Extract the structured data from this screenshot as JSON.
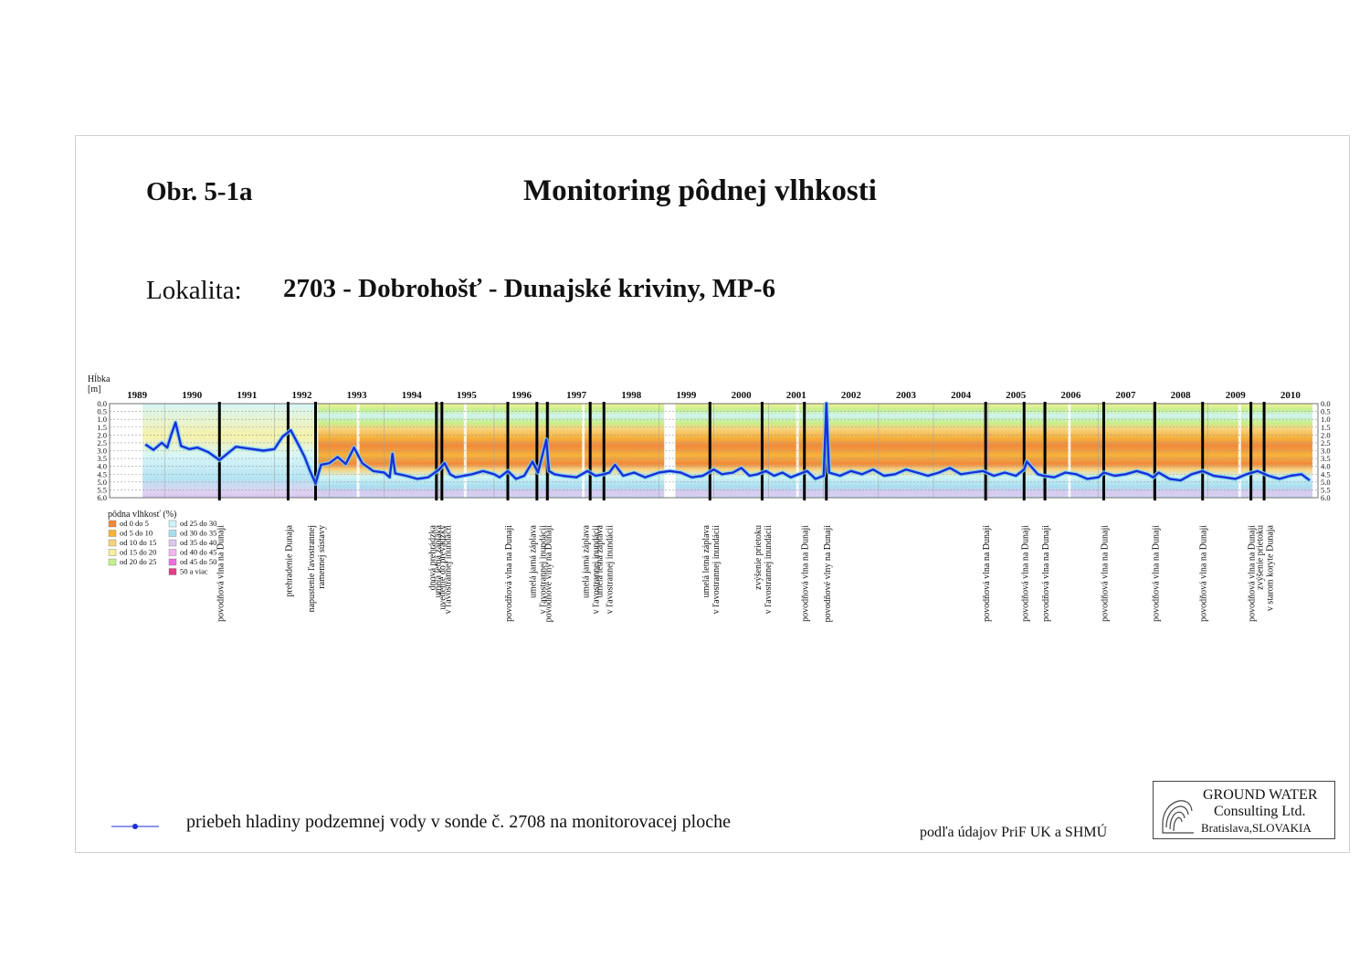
{
  "header": {
    "figure_label": "Obr. 5-1a",
    "title": "Monitoring pôdnej vlhkosti",
    "location_label": "Lokalita:",
    "location_value": "2703 - Dobrohošť - Dunajské kriviny, MP-6"
  },
  "chart_data": {
    "type": "heatmap",
    "ylabel_lines": [
      "Hĺbka",
      "[m]"
    ],
    "ylim": [
      0,
      6
    ],
    "y_ticks": [
      "0.0",
      "0.5",
      "1.0",
      "1.5",
      "2.0",
      "2.5",
      "3.0",
      "3.5",
      "4.0",
      "4.5",
      "5.0",
      "5.5",
      "6.0"
    ],
    "years": [
      "1989",
      "1990",
      "1991",
      "1992",
      "1993",
      "1994",
      "1995",
      "1996",
      "1997",
      "1998",
      "1999",
      "2000",
      "2001",
      "2002",
      "2003",
      "2004",
      "2005",
      "2006",
      "2007",
      "2008",
      "2009",
      "2010"
    ],
    "x_range": [
      1989.0,
      2011.0
    ],
    "legend": {
      "title": "pôdna vlhkosť (%)",
      "items": [
        {
          "label": "od 0 do 5",
          "color": "#f08a3c"
        },
        {
          "label": "od 5 do 10",
          "color": "#f5b33c"
        },
        {
          "label": "od 10 do 15",
          "color": "#f7d27e"
        },
        {
          "label": "od 15 do 20",
          "color": "#f5ef9c"
        },
        {
          "label": "od 20 do 25",
          "color": "#c6f08c"
        },
        {
          "label": "od 25 do 30",
          "color": "#cff4f5"
        },
        {
          "label": "od 30 do 35",
          "color": "#a9def0"
        },
        {
          "label": "od 35 do 40",
          "color": "#dcc8ee"
        },
        {
          "label": "od 40 do 45",
          "color": "#f3b6f0"
        },
        {
          "label": "od 45 do 50",
          "color": "#ee6fe0"
        },
        {
          "label": "50 a viac",
          "color": "#e43c86"
        }
      ]
    },
    "measurement_gaps": [
      [
        1989.0,
        1989.6
      ],
      [
        1999.1,
        1999.3
      ]
    ],
    "series": [
      {
        "name": "priebeh hladiny podzemnej vody v sonde č. 2708 na monitorovacej ploche",
        "color": "#1a2fd8",
        "x": [
          1989.65,
          1989.8,
          1989.95,
          1990.05,
          1990.12,
          1990.2,
          1990.3,
          1990.45,
          1990.6,
          1990.8,
          1991.0,
          1991.3,
          1991.5,
          1991.8,
          1992.0,
          1992.15,
          1992.3,
          1992.45,
          1992.55,
          1992.65,
          1992.75,
          1992.85,
          1993.0,
          1993.15,
          1993.3,
          1993.45,
          1993.6,
          1993.8,
          1994.0,
          1994.1,
          1994.15,
          1994.2,
          1994.4,
          1994.6,
          1994.8,
          1995.0,
          1995.1,
          1995.2,
          1995.3,
          1995.45,
          1995.6,
          1995.8,
          1996.0,
          1996.1,
          1996.25,
          1996.4,
          1996.55,
          1996.7,
          1996.8,
          1996.95,
          1997.0,
          1997.1,
          1997.25,
          1997.5,
          1997.7,
          1997.85,
          1998.0,
          1998.1,
          1998.2,
          1998.35,
          1998.55,
          1998.75,
          1999.0,
          1999.2,
          1999.4,
          1999.6,
          1999.8,
          2000.0,
          2000.15,
          2000.35,
          2000.5,
          2000.65,
          2000.8,
          2000.95,
          2001.1,
          2001.25,
          2001.4,
          2001.55,
          2001.7,
          2001.85,
          2002.0,
          2002.05,
          2002.1,
          2002.3,
          2002.5,
          2002.7,
          2002.9,
          2003.1,
          2003.3,
          2003.5,
          2003.7,
          2003.9,
          2004.1,
          2004.3,
          2004.5,
          2004.7,
          2004.9,
          2005.1,
          2005.3,
          2005.5,
          2005.65,
          2005.7,
          2005.9,
          2006.0,
          2006.2,
          2006.4,
          2006.6,
          2006.8,
          2007.0,
          2007.1,
          2007.3,
          2007.5,
          2007.7,
          2007.9,
          2008.0,
          2008.1,
          2008.3,
          2008.5,
          2008.7,
          2008.9,
          2009.1,
          2009.3,
          2009.5,
          2009.7,
          2009.9,
          2010.1,
          2010.3,
          2010.5,
          2010.7,
          2010.85
        ],
        "y": [
          2.6,
          2.95,
          2.5,
          2.8,
          2.0,
          1.2,
          2.7,
          2.9,
          2.8,
          3.1,
          3.6,
          2.75,
          2.85,
          3.0,
          2.9,
          2.1,
          1.7,
          2.7,
          3.4,
          4.3,
          5.1,
          3.9,
          3.8,
          3.4,
          3.85,
          2.8,
          3.8,
          4.3,
          4.4,
          4.7,
          3.2,
          4.45,
          4.6,
          4.8,
          4.7,
          4.2,
          3.8,
          4.5,
          4.7,
          4.6,
          4.5,
          4.3,
          4.5,
          4.7,
          4.3,
          4.8,
          4.6,
          3.7,
          4.4,
          2.3,
          4.3,
          4.5,
          4.6,
          4.7,
          4.3,
          4.6,
          4.5,
          4.4,
          3.9,
          4.6,
          4.4,
          4.7,
          4.4,
          4.3,
          4.4,
          4.7,
          4.6,
          4.2,
          4.5,
          4.4,
          4.1,
          4.6,
          4.5,
          4.3,
          4.6,
          4.4,
          4.7,
          4.5,
          4.3,
          4.8,
          4.6,
          0.0,
          4.4,
          4.6,
          4.3,
          4.5,
          4.2,
          4.6,
          4.5,
          4.2,
          4.4,
          4.6,
          4.4,
          4.1,
          4.5,
          4.4,
          4.3,
          4.6,
          4.4,
          4.6,
          4.2,
          3.7,
          4.5,
          4.6,
          4.7,
          4.4,
          4.5,
          4.8,
          4.7,
          4.4,
          4.6,
          4.5,
          4.3,
          4.5,
          4.7,
          4.4,
          4.8,
          4.9,
          4.5,
          4.3,
          4.6,
          4.7,
          4.8,
          4.5,
          4.3,
          4.6,
          4.8,
          4.6,
          4.5,
          4.9
        ]
      }
    ],
    "events": [
      {
        "x": 1991.0,
        "label": [
          "povodňová vlna na Dunaji"
        ]
      },
      {
        "x": 1992.25,
        "label": [
          "prehradenie Dunaja"
        ]
      },
      {
        "x": 1992.75,
        "label": [
          "napustenie ľavostrannej",
          "ramennej sústavy"
        ]
      },
      {
        "x": 1994.95,
        "label": [
          "dnová prehrádzka",
          "uvedenie do prevádzky"
        ]
      },
      {
        "x": 1995.05,
        "label": [
          "umelá letná záplava",
          "v ľavostrannej inundácii"
        ]
      },
      {
        "x": 1996.25,
        "label": [
          "povodňová vlna na Dunaji"
        ]
      },
      {
        "x": 1996.78,
        "label": [
          "umelá jarná záplava",
          "v ľavostrannej inundácii"
        ]
      },
      {
        "x": 1996.97,
        "label": [
          "povodňové vlny na Dunaji"
        ]
      },
      {
        "x": 1997.75,
        "label": [
          "umelá jarná záplava",
          "v ľavostrannej inundácii"
        ]
      },
      {
        "x": 1998.0,
        "label": [
          "umelá letná záplava",
          "v ľavostrannej inundácii"
        ]
      },
      {
        "x": 1999.93,
        "label": [
          "umelá letná záplava",
          "v ľavostrannej inundácii"
        ]
      },
      {
        "x": 2000.88,
        "label": [
          "zvýšenie prietoku",
          "v ľavostrannej inundácii"
        ]
      },
      {
        "x": 2001.65,
        "label": [
          "povodňová vlna na Dunaji"
        ]
      },
      {
        "x": 2002.05,
        "label": [
          "povodňové vlny na Dunaji"
        ]
      },
      {
        "x": 2004.95,
        "label": [
          "povodňová vlna na Dunaji"
        ]
      },
      {
        "x": 2005.65,
        "label": [
          "povodňová vlna na Dunaji"
        ]
      },
      {
        "x": 2006.03,
        "label": [
          "povodňová vlna na Dunaji"
        ]
      },
      {
        "x": 2007.1,
        "label": [
          "povodňová vlna na Dunaji"
        ]
      },
      {
        "x": 2008.03,
        "label": [
          "povodňová vlna na Dunaji"
        ]
      },
      {
        "x": 2008.9,
        "label": [
          "povodňová vlna na Dunaji"
        ]
      },
      {
        "x": 2009.78,
        "label": [
          "povodňová vlna na Dunaji"
        ]
      },
      {
        "x": 2010.02,
        "label": [
          "zvýšenie prietoku",
          "v starom koryte Dunaja"
        ]
      }
    ]
  },
  "footer": {
    "series_legend": "priebeh hladiny podzemnej vody v sonde č. 2708 na monitorovacej ploche",
    "source": "podľa údajov PriF UK a SHMÚ",
    "logo_line1": "GROUND WATER",
    "logo_line2": "Consulting Ltd.",
    "logo_line3": "Bratislava,SLOVAKIA"
  }
}
